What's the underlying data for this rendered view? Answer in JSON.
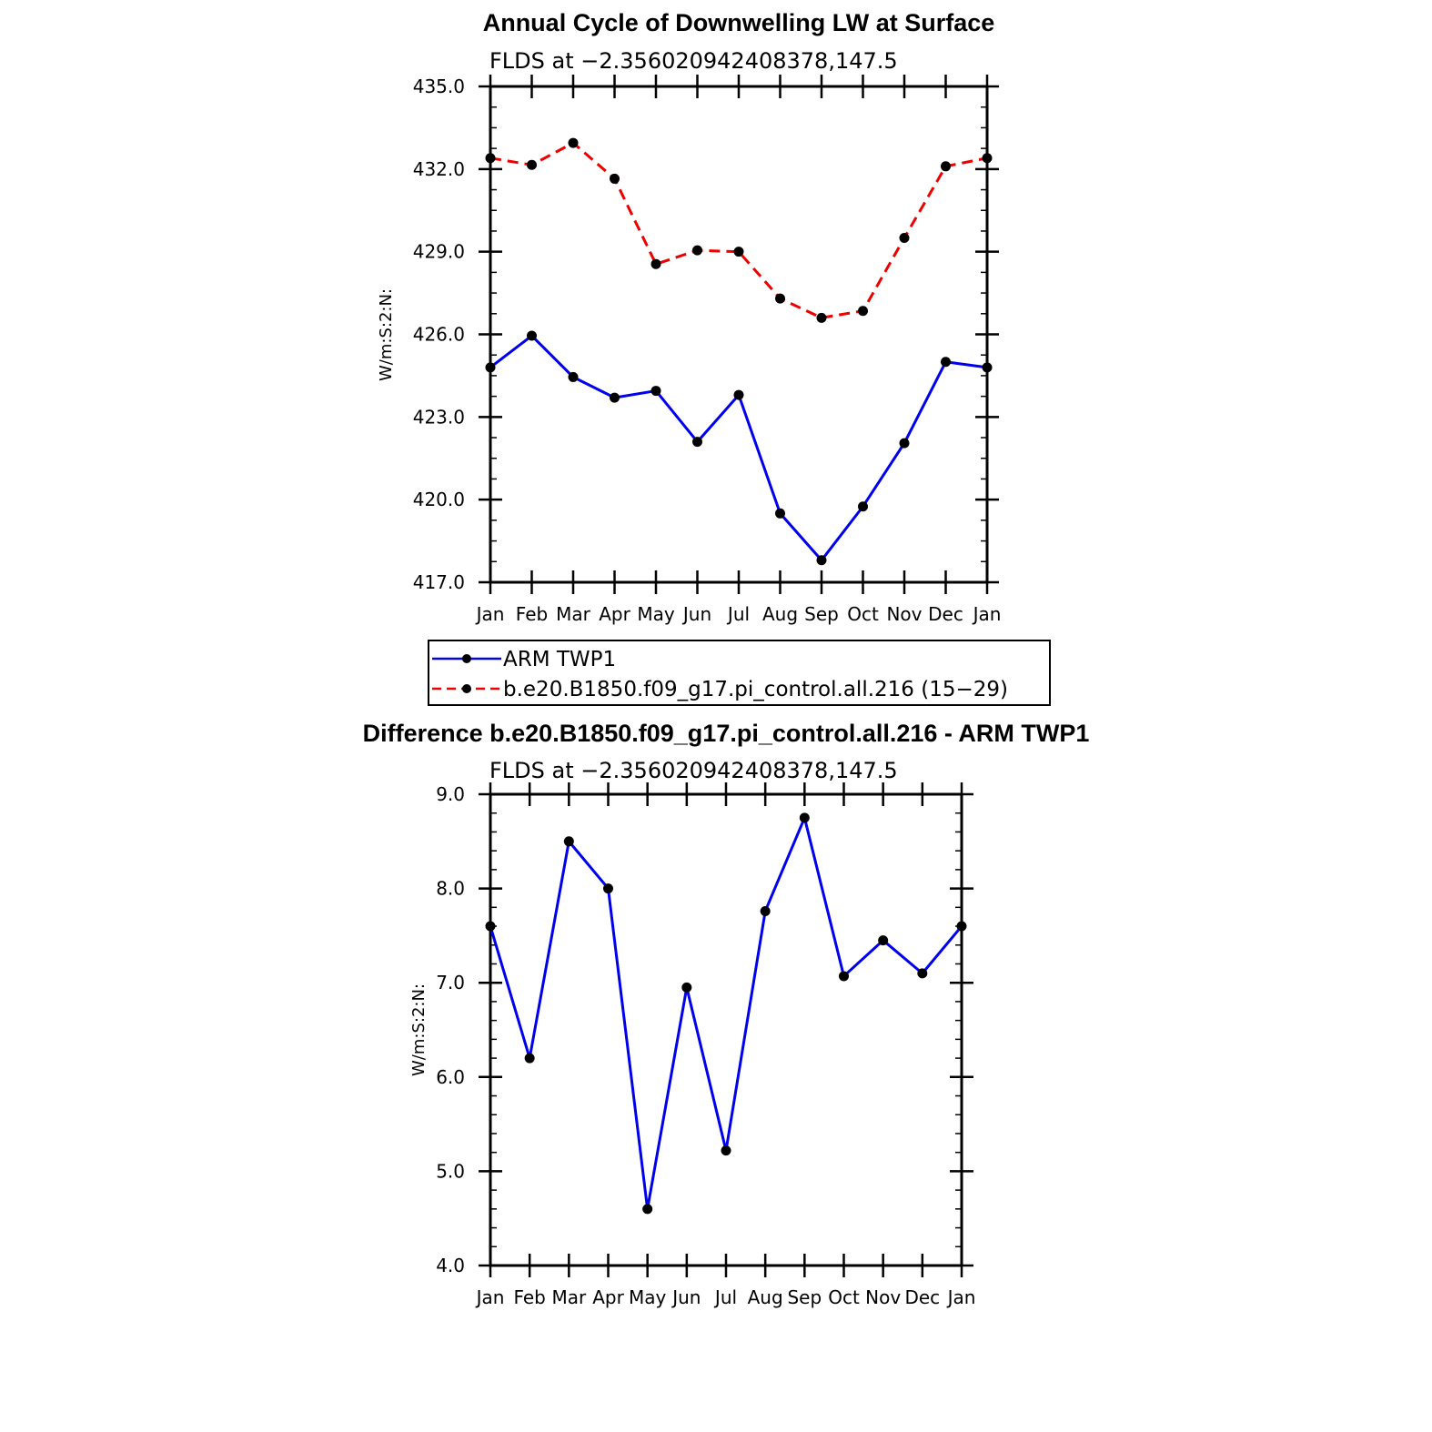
{
  "chart_data": [
    {
      "type": "line",
      "title": "Annual Cycle of Downwelling LW at Surface",
      "subtitle": "FLDS at −2.356020942408378,147.5",
      "ylabel": "W/m:S:2:N:",
      "categories": [
        "Jan",
        "Feb",
        "Mar",
        "Apr",
        "May",
        "Jun",
        "Jul",
        "Aug",
        "Sep",
        "Oct",
        "Nov",
        "Dec",
        "Jan"
      ],
      "ylim": [
        417.0,
        435.0
      ],
      "yticks": [
        "417.0",
        "420.0",
        "423.0",
        "426.0",
        "429.0",
        "432.0",
        "435.0"
      ],
      "series": [
        {
          "name": "ARM TWP1",
          "color": "#0000ee",
          "dash": "solid",
          "values": [
            424.8,
            425.95,
            424.45,
            423.7,
            423.95,
            422.1,
            423.8,
            419.5,
            417.8,
            419.75,
            422.05,
            425.0,
            424.8
          ]
        },
        {
          "name": "b.e20.B1850.f09_g17.pi_control.all.216 (15−29)",
          "color": "#ee0000",
          "dash": "dashed",
          "values": [
            432.4,
            432.15,
            432.95,
            431.65,
            428.55,
            429.05,
            429.0,
            427.3,
            426.6,
            426.85,
            429.5,
            432.1,
            432.4
          ]
        }
      ],
      "legend_position": "below"
    },
    {
      "type": "line",
      "title": "Difference b.e20.B1850.f09_g17.pi_control.all.216 - ARM TWP1",
      "subtitle": "FLDS at −2.356020942408378,147.5",
      "ylabel": "W/m:S:2:N:",
      "categories": [
        "Jan",
        "Feb",
        "Mar",
        "Apr",
        "May",
        "Jun",
        "Jul",
        "Aug",
        "Sep",
        "Oct",
        "Nov",
        "Dec",
        "Jan"
      ],
      "ylim": [
        4.0,
        9.0
      ],
      "yticks": [
        "4.0",
        "5.0",
        "6.0",
        "7.0",
        "8.0",
        "9.0"
      ],
      "series": [
        {
          "color": "#0000ee",
          "dash": "solid",
          "values": [
            7.6,
            6.2,
            8.5,
            8.0,
            4.6,
            6.95,
            5.22,
            7.76,
            8.75,
            7.07,
            7.45,
            7.1,
            7.6
          ]
        }
      ]
    }
  ]
}
